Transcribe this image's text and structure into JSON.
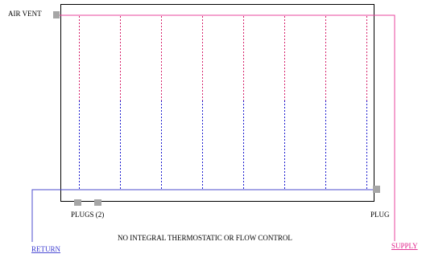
{
  "labels": {
    "air_vent": "AIR VENT",
    "plugs": "PLUGS (2)",
    "plug": "PLUG",
    "note": "NO INTEGRAL THERMOSTATIC OR FLOW CONTROL",
    "return": "RETURN",
    "supply": "SUPPLY"
  },
  "colors": {
    "frame": "#000000",
    "supply_line": "#e8459c",
    "return_line": "#4b4bcc",
    "tube_top": "#d6226b",
    "tube_bottom": "#1c1ccf",
    "fitting": "#a6a6a6",
    "return_text": "#3a3ad0",
    "supply_text": "#e0208a"
  },
  "tubes": {
    "count": 8
  }
}
